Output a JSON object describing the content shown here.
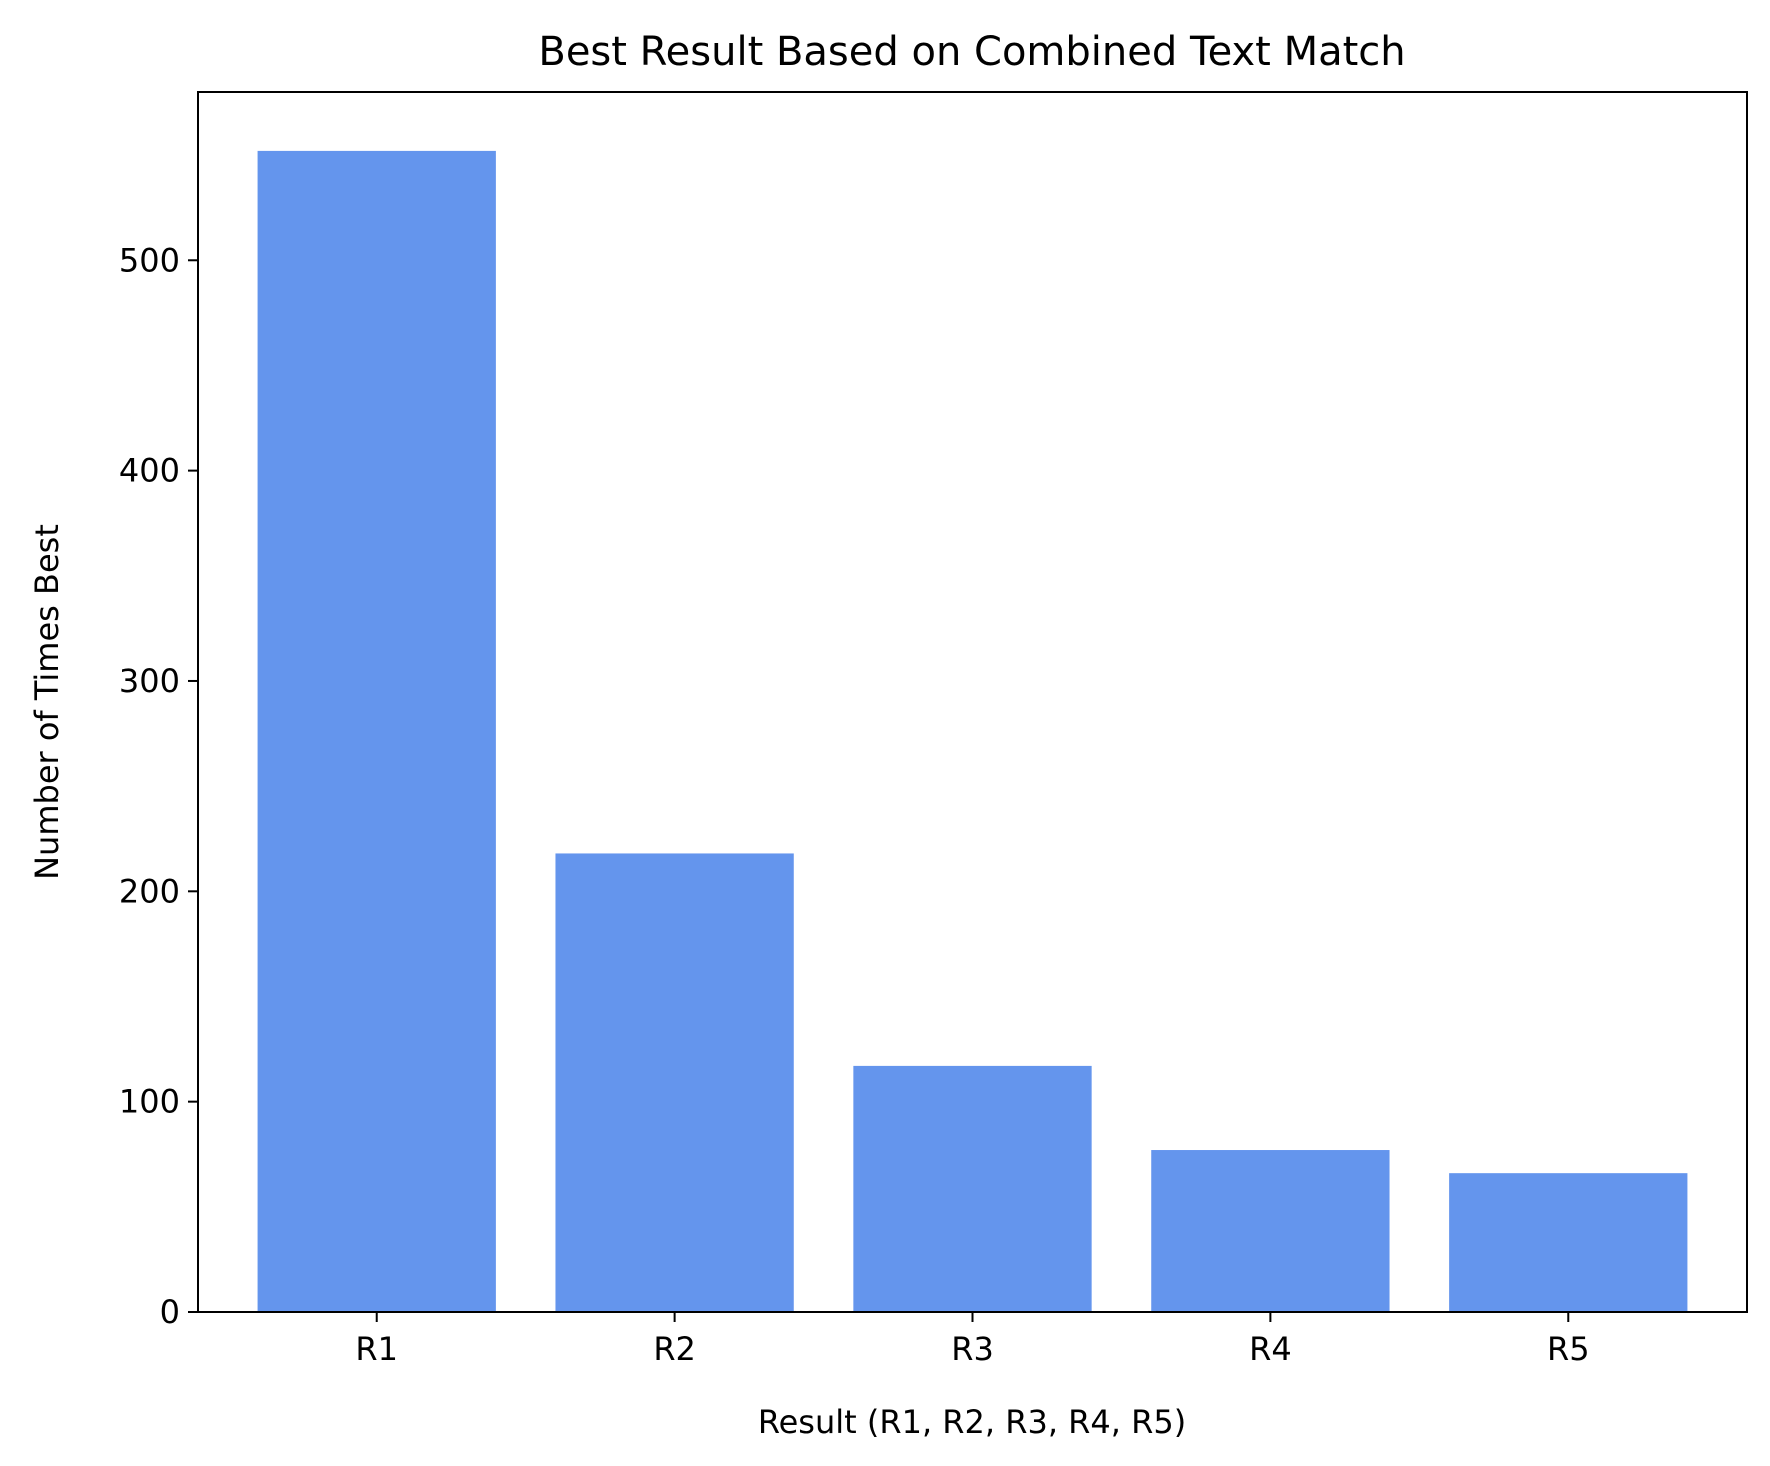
{
  "chart_data": {
    "type": "bar",
    "title": "Best Result Based on Combined Text Match",
    "xlabel": "Result (R1, R2, R3, R4, R5)",
    "ylabel": "Number of Times Best",
    "categories": [
      "R1",
      "R2",
      "R3",
      "R4",
      "R5"
    ],
    "values": [
      552,
      218,
      117,
      77,
      66
    ],
    "ylim": [
      0,
      580
    ],
    "yticks": [
      0,
      100,
      200,
      300,
      400,
      500
    ],
    "grid": false,
    "bar_color": "#6495ED"
  }
}
